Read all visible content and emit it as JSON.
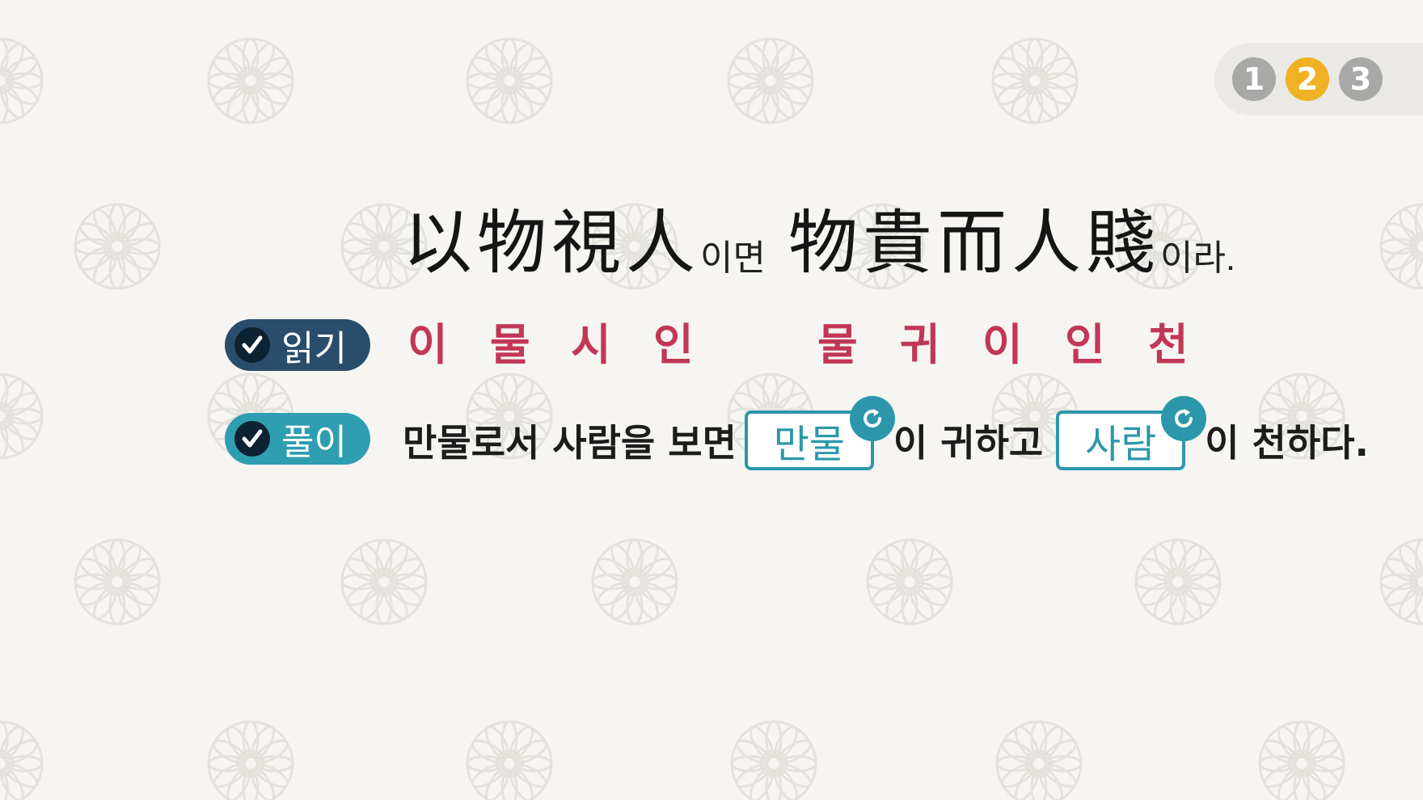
{
  "pagination": {
    "pages": [
      "1",
      "2",
      "3"
    ],
    "current": "2"
  },
  "sentence": {
    "part1": "以物視人",
    "connector1": "이면",
    "part2": "物貴而人賤",
    "connector2": "이라."
  },
  "reading": {
    "label": "읽기",
    "syllables": [
      "이",
      "물",
      "시",
      "인",
      "물",
      "귀",
      "이",
      "인",
      "천"
    ]
  },
  "meaning": {
    "label": "풀이",
    "text1": "만물로서 사람을 보면",
    "blank1": "만물",
    "text2": "이 귀하고",
    "blank2": "사람",
    "text3": "이 천하다."
  },
  "colors": {
    "background": "#f6f5f1",
    "reading_pill": "#2a4d6b",
    "meaning_pill": "#2e9eb0",
    "reading_text": "#c23755",
    "active_page": "#f0b224",
    "inactive_page": "#a8a8a6"
  }
}
